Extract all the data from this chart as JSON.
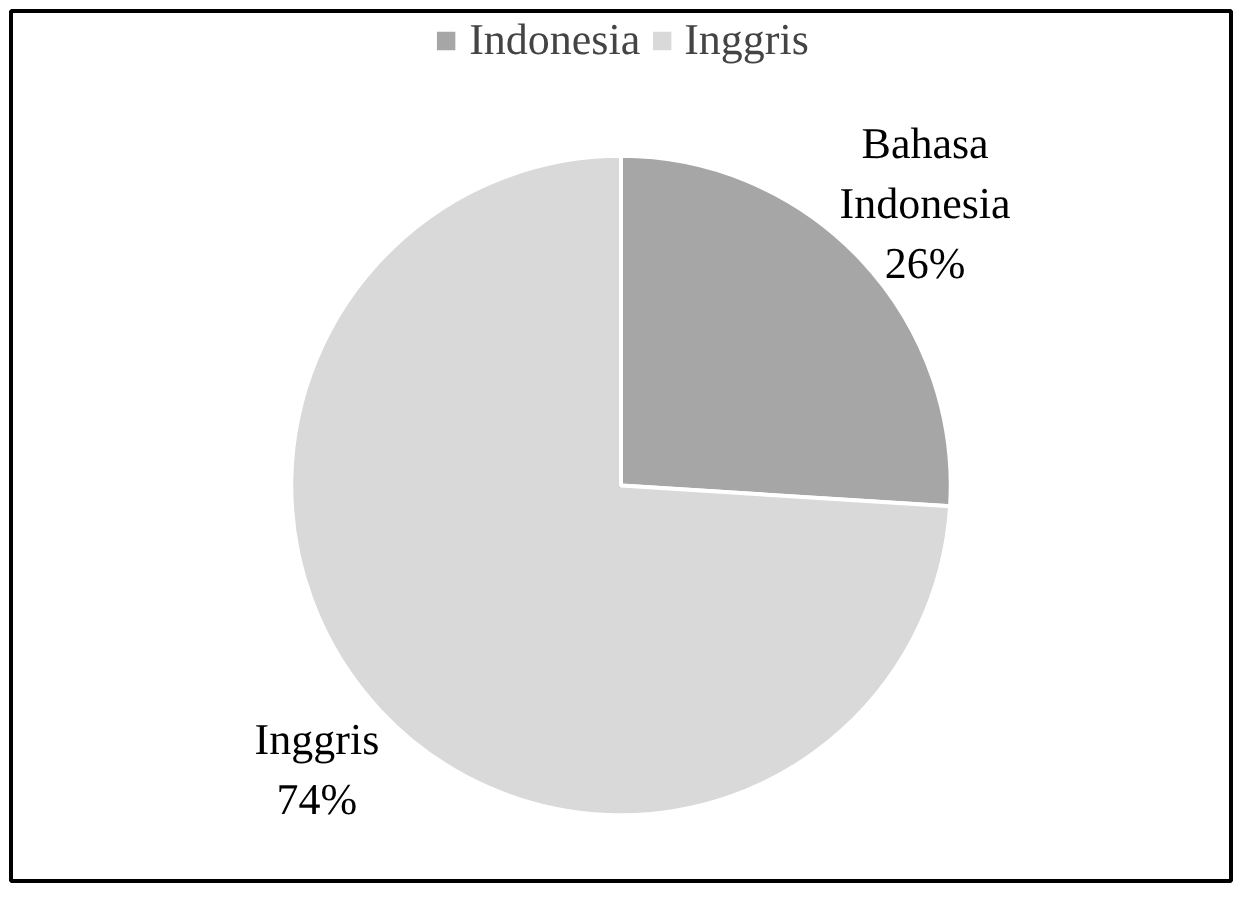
{
  "chart_data": {
    "type": "pie",
    "categories": [
      "Indonesia",
      "Inggris"
    ],
    "values": [
      26,
      74
    ],
    "colors": [
      "#a6a6a6",
      "#d9d9d9"
    ],
    "value_labels": [
      "Bahasa Indonesia 26%",
      "Inggris 74%"
    ],
    "legend": "top"
  }
}
